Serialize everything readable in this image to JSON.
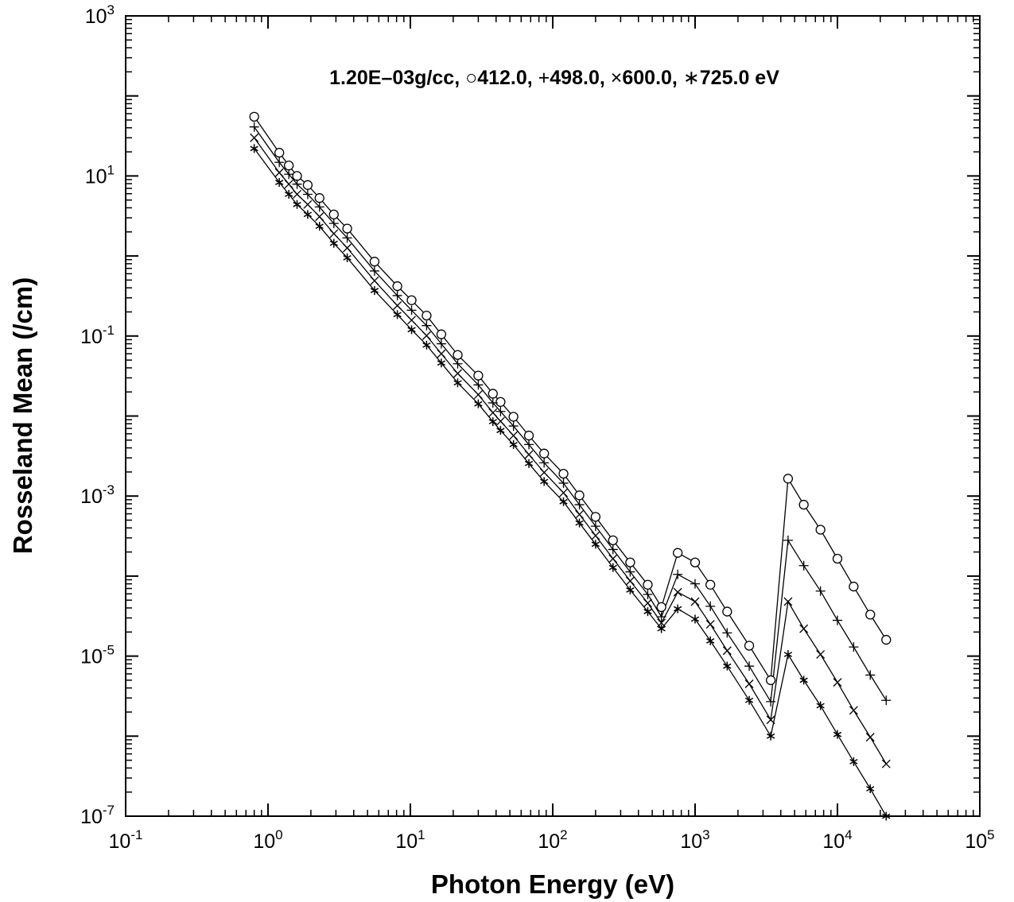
{
  "chart_data": {
    "type": "line",
    "title": {
      "prefix": "1.20E–03g/cc,",
      "entries": [
        {
          "marker": "○",
          "text": "412.0,"
        },
        {
          "marker": "+",
          "text": "498.0,"
        },
        {
          "marker": "×",
          "text": "600.0,"
        },
        {
          "marker": "∗",
          "text": "725.0 eV"
        }
      ]
    },
    "xlabel": "Photon Energy (eV)",
    "ylabel": "Rosseland Mean (/cm)",
    "x_scale": "log",
    "y_scale": "log",
    "xlim": [
      0.1,
      100000
    ],
    "ylim": [
      1e-07,
      1000
    ],
    "grid": false,
    "x_ticks": [
      {
        "base": "10",
        "exp": "-1",
        "value": 0.1
      },
      {
        "base": "10",
        "exp": "0",
        "value": 1
      },
      {
        "base": "10",
        "exp": "1",
        "value": 10
      },
      {
        "base": "10",
        "exp": "2",
        "value": 100
      },
      {
        "base": "10",
        "exp": "3",
        "value": 1000
      },
      {
        "base": "10",
        "exp": "4",
        "value": 10000
      },
      {
        "base": "10",
        "exp": "5",
        "value": 100000
      }
    ],
    "y_ticks": [
      {
        "base": "10",
        "exp": "-7",
        "value": 1e-07
      },
      {
        "base": "10",
        "exp": "-5",
        "value": 1e-05
      },
      {
        "base": "10",
        "exp": "-3",
        "value": 0.001
      },
      {
        "base": "10",
        "exp": "-1",
        "value": 0.1
      },
      {
        "base": "10",
        "exp": "1",
        "value": 10
      },
      {
        "base": "10",
        "exp": "3",
        "value": 1000
      }
    ],
    "x": [
      0.8,
      1.2,
      1.4,
      1.6,
      1.9,
      2.3,
      2.9,
      3.6,
      5.6,
      8.1,
      10.2,
      13,
      16.5,
      21.5,
      30,
      38,
      43,
      53,
      68,
      87,
      119,
      154,
      200,
      265,
      350,
      465,
      580,
      755,
      1000,
      1280,
      1680,
      2400,
      3400,
      4500,
      5800,
      7600,
      10000,
      13000,
      17000,
      22000
    ],
    "series": [
      {
        "name": "412.0 eV",
        "marker": "circle",
        "values": [
          55,
          19.5,
          13.5,
          10,
          7.7,
          5.3,
          3.3,
          2.2,
          0.85,
          0.42,
          0.28,
          0.18,
          0.105,
          0.058,
          0.032,
          0.019,
          0.015,
          0.0098,
          0.0057,
          0.0034,
          0.0019,
          0.00102,
          0.00055,
          0.00028,
          0.000148,
          7.8e-05,
          4.1e-05,
          0.000195,
          0.000148,
          7.8e-05,
          3.6e-05,
          1.35e-05,
          5e-06,
          0.00165,
          0.00078,
          0.00038,
          0.000165,
          7.4e-05,
          3.3e-05,
          1.6e-05
        ]
      },
      {
        "name": "498.0 eV",
        "marker": "plus",
        "values": [
          41,
          14.8,
          10.5,
          7.9,
          5.9,
          4.1,
          2.55,
          1.68,
          0.65,
          0.32,
          0.21,
          0.135,
          0.08,
          0.045,
          0.0245,
          0.0146,
          0.0114,
          0.0075,
          0.0044,
          0.0026,
          0.00145,
          0.00078,
          0.00042,
          0.000215,
          0.000113,
          5.9e-05,
          3.1e-05,
          0.000105,
          8e-05,
          4.2e-05,
          1.95e-05,
          7.5e-06,
          2.7e-06,
          0.00028,
          0.000135,
          6.5e-05,
          2.8e-05,
          1.3e-05,
          5.8e-06,
          2.8e-06
        ]
      },
      {
        "name": "600.0 eV",
        "marker": "cross",
        "values": [
          30,
          11,
          7.9,
          5.9,
          4.4,
          3.1,
          1.9,
          1.26,
          0.49,
          0.24,
          0.158,
          0.101,
          0.06,
          0.034,
          0.0185,
          0.011,
          0.0086,
          0.0057,
          0.0033,
          0.00197,
          0.0011,
          0.00059,
          0.00032,
          0.000165,
          8.7e-05,
          4.6e-05,
          2.6e-05,
          6.3e-05,
          4.8e-05,
          2.5e-05,
          1.17e-05,
          4.5e-06,
          1.6e-06,
          4.8e-05,
          2.2e-05,
          1.05e-05,
          4.7e-06,
          2.1e-06,
          9.7e-07,
          4.5e-07
        ]
      },
      {
        "name": "725.0 eV",
        "marker": "star",
        "values": [
          22,
          8.3,
          5.9,
          4.4,
          3.3,
          2.35,
          1.44,
          0.95,
          0.37,
          0.185,
          0.12,
          0.077,
          0.046,
          0.026,
          0.0142,
          0.0085,
          0.0066,
          0.0044,
          0.00255,
          0.00152,
          0.00085,
          0.00046,
          0.00025,
          0.000128,
          6.7e-05,
          3.6e-05,
          2.2e-05,
          3.9e-05,
          2.9e-05,
          1.55e-05,
          7.5e-06,
          2.8e-06,
          1e-06,
          1.05e-05,
          5e-06,
          2.4e-06,
          1.05e-06,
          4.8e-07,
          2.2e-07,
          1e-07
        ]
      }
    ]
  }
}
